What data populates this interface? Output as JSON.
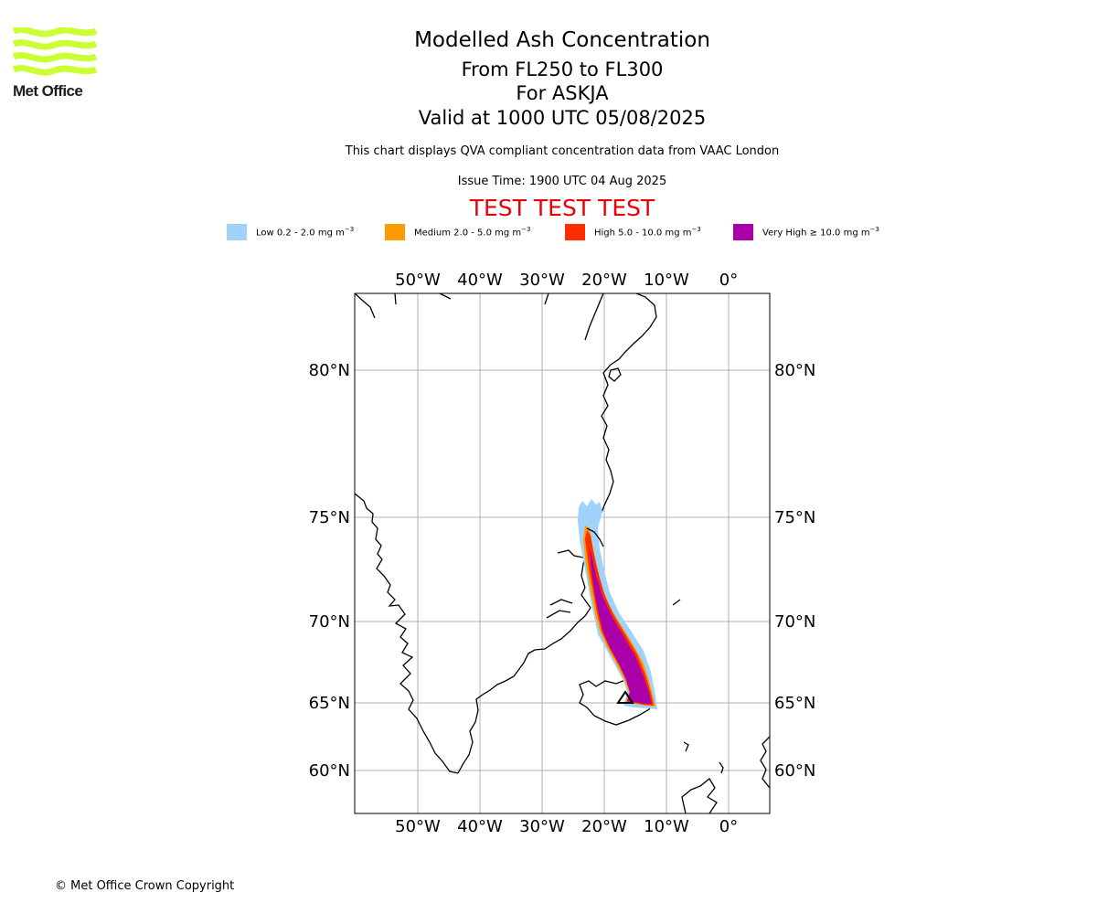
{
  "logo": {
    "text": "Met Office",
    "color": "#ccff33"
  },
  "header": {
    "title": "Modelled Ash Concentration",
    "level": "From FL250 to FL300",
    "volcano": "For ASKJA",
    "valid": "Valid at 1000 UTC 05/08/2025",
    "description": "This chart displays QVA compliant concentration data from VAAC London",
    "issue_time": "Issue Time: 1900 UTC 04 Aug 2025",
    "test_banner": "TEST TEST TEST"
  },
  "legend": [
    {
      "label": "Low 0.2 - 2.0 mg m",
      "unit_exp": "−3",
      "color": "#a0d2fa"
    },
    {
      "label": "Medium 2.0 - 5.0 mg m",
      "unit_exp": "−3",
      "color": "#ff9900"
    },
    {
      "label": "High 5.0 - 10.0 mg m",
      "unit_exp": "−3",
      "color": "#ff2d00"
    },
    {
      "label": "Very High  ≥  10.0 mg m",
      "unit_exp": "−3",
      "color": "#aa00aa"
    }
  ],
  "map": {
    "lon_ticks": [
      "50°W",
      "40°W",
      "30°W",
      "20°W",
      "10°W",
      "0°"
    ],
    "lat_ticks": [
      "80°N",
      "75°N",
      "70°N",
      "65°N",
      "60°N"
    ],
    "grid_color": "#b0b0b0"
  },
  "footer": {
    "copyright": "© Met Office Crown Copyright"
  }
}
